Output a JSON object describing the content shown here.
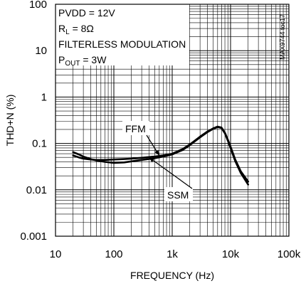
{
  "chart_data": {
    "type": "line",
    "title": "",
    "xlabel": "FREQUENCY (Hz)",
    "ylabel": "THD+N (%)",
    "x_scale": "log",
    "y_scale": "log",
    "xlim": [
      10,
      100000
    ],
    "ylim": [
      0.001,
      100
    ],
    "x_ticks": [
      10,
      100,
      1000,
      10000,
      100000
    ],
    "x_tick_labels": [
      "10",
      "100",
      "1k",
      "10k",
      "100k"
    ],
    "y_ticks": [
      0.001,
      0.01,
      0.1,
      1,
      10,
      100
    ],
    "y_tick_labels": [
      "0.001",
      "0.01",
      "0.1",
      "1",
      "10",
      "100"
    ],
    "grid": true,
    "conditions": {
      "pvdd": "PVDD = 12V",
      "rl_main": "R",
      "rl_sub": "L",
      "rl_value": " = 8Ω",
      "modulation": "FILTERLESS MODULATION",
      "pout_main": "P",
      "pout_sub": "OUT",
      "pout_value": " = 3W"
    },
    "side_label": "MAX9744 toc17",
    "series": [
      {
        "name": "FFM",
        "x": [
          20,
          25,
          30,
          40,
          50,
          70,
          100,
          150,
          200,
          300,
          500,
          700,
          1000,
          1500,
          2000,
          3000,
          4000,
          5000,
          6000,
          7000,
          8000,
          9000,
          10000,
          12000,
          15000,
          20000
        ],
        "y": [
          0.055,
          0.05,
          0.047,
          0.045,
          0.044,
          0.044,
          0.045,
          0.046,
          0.047,
          0.049,
          0.052,
          0.055,
          0.06,
          0.075,
          0.095,
          0.14,
          0.18,
          0.21,
          0.23,
          0.22,
          0.17,
          0.12,
          0.085,
          0.045,
          0.025,
          0.015
        ]
      },
      {
        "name": "SSM",
        "x": [
          20,
          25,
          30,
          40,
          50,
          70,
          100,
          150,
          200,
          300,
          500,
          700,
          1000,
          1500,
          2000,
          3000,
          4000,
          5000,
          6000,
          7000,
          8000,
          9000,
          10000,
          12000,
          15000,
          20000
        ],
        "y": [
          0.065,
          0.058,
          0.052,
          0.046,
          0.043,
          0.04,
          0.038,
          0.039,
          0.041,
          0.044,
          0.048,
          0.052,
          0.058,
          0.072,
          0.092,
          0.135,
          0.175,
          0.205,
          0.225,
          0.215,
          0.165,
          0.115,
          0.08,
          0.042,
          0.023,
          0.013
        ]
      }
    ],
    "annotations": [
      {
        "text": "FFM",
        "series": "FFM",
        "pointer_x": 600,
        "pointer_y": 0.055
      },
      {
        "text": "SSM",
        "series": "SSM",
        "pointer_x": 400,
        "pointer_y": 0.05
      }
    ]
  }
}
